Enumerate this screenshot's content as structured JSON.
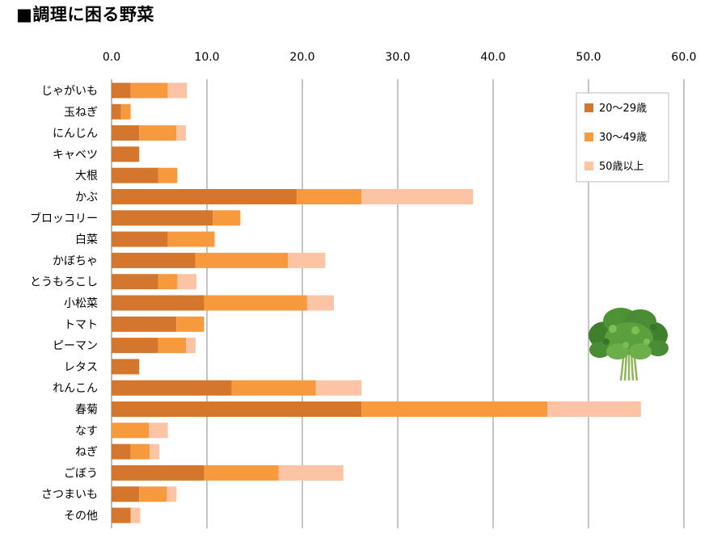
{
  "chart_data": {
    "type": "bar",
    "orientation": "horizontal",
    "stacked": true,
    "title": "■調理に困る野菜",
    "xlim": [
      0,
      60
    ],
    "x_ticks": [
      "0.0",
      "10.0",
      "20.0",
      "30.0",
      "40.0",
      "50.0",
      "60.0"
    ],
    "x_tick_values": [
      0,
      10,
      20,
      30,
      40,
      50,
      60
    ],
    "x_axis_position": "top",
    "grid": true,
    "legend_position": "top-right",
    "categories": [
      "じゃがいも",
      "玉ねぎ",
      "にんじん",
      "キャベツ",
      "大根",
      "かぶ",
      "ブロッコリー",
      "白菜",
      "かぼちゃ",
      "とうもろこし",
      "小松菜",
      "トマト",
      "ピーマン",
      "レタス",
      "れんこん",
      "春菊",
      "なす",
      "ねぎ",
      "ごぼう",
      "さつまいも",
      "その他"
    ],
    "series": [
      {
        "name": "20～29歳",
        "color": "#D4762C",
        "values": [
          2.0,
          1.0,
          2.9,
          2.9,
          4.9,
          19.4,
          10.6,
          5.9,
          8.8,
          4.9,
          9.7,
          6.8,
          4.9,
          2.9,
          12.6,
          26.2,
          0,
          2.0,
          9.7,
          2.9,
          2.0
        ]
      },
      {
        "name": "30～49歳",
        "color": "#F79A3E",
        "values": [
          3.9,
          1.0,
          3.9,
          0,
          2.0,
          6.8,
          2.9,
          4.9,
          9.7,
          2.0,
          10.8,
          2.9,
          2.9,
          0,
          8.8,
          19.5,
          3.9,
          2.0,
          7.8,
          2.9,
          0
        ]
      },
      {
        "name": "50歳以上",
        "color": "#FCC3A5",
        "values": [
          2.0,
          0,
          1.0,
          0,
          0,
          11.7,
          0,
          0,
          3.9,
          2.0,
          2.8,
          0,
          1.0,
          0,
          4.8,
          9.8,
          2.0,
          1.0,
          6.8,
          1.0,
          1.0
        ]
      }
    ]
  },
  "image_icon": "shungiku-bunch-icon"
}
